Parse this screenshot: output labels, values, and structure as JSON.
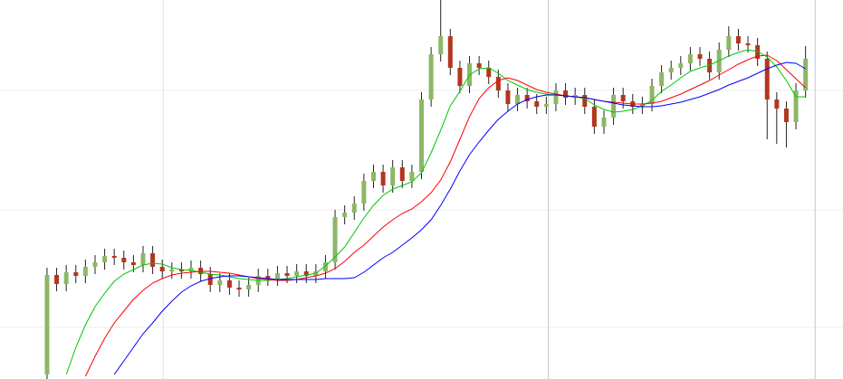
{
  "chart_data": {
    "type": "candlestick",
    "x": [
      0,
      1,
      2,
      3,
      4,
      5,
      6,
      7,
      8,
      9,
      10,
      11,
      12,
      13,
      14,
      15,
      16,
      17,
      18,
      19,
      20,
      21,
      22,
      23,
      24,
      25,
      26,
      27,
      28,
      29,
      30,
      31,
      32,
      33,
      34,
      35,
      36,
      37,
      38,
      39,
      40,
      41,
      42,
      43,
      44,
      45,
      46,
      47,
      48,
      49,
      50,
      51,
      52,
      53,
      54,
      55,
      56,
      57,
      58,
      59,
      60,
      61,
      62,
      63,
      64,
      65,
      66,
      67,
      68,
      69,
      70,
      71,
      72,
      73,
      74,
      75,
      76,
      77,
      78,
      79
    ],
    "open": [
      5,
      115,
      105,
      118,
      114,
      124,
      129,
      136,
      134,
      129,
      126,
      139,
      124,
      119,
      121,
      119,
      123,
      116,
      104,
      109,
      101,
      99,
      104,
      114,
      111,
      117,
      114,
      119,
      114,
      119,
      129,
      179,
      184,
      194,
      219,
      229,
      214,
      234,
      219,
      229,
      309,
      359,
      379,
      344,
      324,
      349,
      344,
      334,
      319,
      304,
      314,
      307,
      301,
      304,
      319,
      311,
      314,
      301,
      279,
      289,
      314,
      307,
      301,
      304,
      324,
      339,
      344,
      349,
      359,
      354,
      339,
      364,
      379,
      371,
      369,
      354,
      309,
      299,
      284,
      319
    ],
    "high": [
      123,
      123,
      126,
      126,
      132,
      137,
      144,
      144,
      142,
      137,
      147,
      147,
      132,
      129,
      129,
      131,
      131,
      124,
      117,
      117,
      109,
      112,
      122,
      122,
      125,
      125,
      127,
      127,
      127,
      137,
      187,
      192,
      202,
      227,
      237,
      237,
      242,
      242,
      237,
      317,
      367,
      419,
      387,
      352,
      357,
      357,
      352,
      342,
      327,
      322,
      322,
      315,
      312,
      327,
      327,
      322,
      322,
      309,
      297,
      322,
      322,
      315,
      312,
      332,
      347,
      352,
      357,
      367,
      367,
      362,
      372,
      390,
      387,
      379,
      377,
      362,
      317,
      307,
      327,
      368
    ],
    "low": [
      0,
      97,
      97,
      106,
      106,
      116,
      121,
      126,
      121,
      118,
      118,
      116,
      111,
      111,
      111,
      111,
      108,
      96,
      96,
      93,
      91,
      91,
      96,
      103,
      103,
      106,
      106,
      106,
      106,
      111,
      121,
      171,
      176,
      186,
      211,
      206,
      206,
      211,
      211,
      221,
      301,
      351,
      336,
      316,
      316,
      336,
      326,
      311,
      296,
      296,
      299,
      293,
      293,
      296,
      303,
      303,
      293,
      271,
      271,
      281,
      299,
      293,
      293,
      296,
      316,
      331,
      336,
      341,
      346,
      331,
      331,
      356,
      363,
      361,
      346,
      265,
      260,
      256,
      276,
      311
    ],
    "close": [
      115,
      105,
      118,
      114,
      124,
      129,
      136,
      134,
      129,
      126,
      139,
      124,
      119,
      121,
      119,
      123,
      116,
      104,
      109,
      101,
      99,
      104,
      114,
      111,
      117,
      114,
      119,
      114,
      119,
      129,
      179,
      184,
      194,
      219,
      229,
      214,
      234,
      219,
      229,
      309,
      359,
      379,
      344,
      324,
      349,
      344,
      334,
      319,
      304,
      314,
      307,
      301,
      304,
      319,
      311,
      314,
      301,
      279,
      289,
      314,
      307,
      301,
      304,
      324,
      339,
      344,
      349,
      359,
      354,
      339,
      364,
      379,
      371,
      369,
      354,
      309,
      299,
      284,
      319,
      354
    ],
    "up_color": "#8cb866",
    "down_color": "#b3361f",
    "series": [
      {
        "color": "#00c800",
        "values": [
          null,
          null,
          5,
          35,
          60,
          80,
          95,
          108,
          116,
          121,
          126,
          128,
          127,
          123,
          121,
          120,
          118,
          116,
          115,
          113,
          111,
          110,
          109,
          109,
          110,
          111,
          113,
          115,
          117,
          125,
          135,
          146,
          162,
          178,
          192,
          203,
          210,
          214,
          218,
          228,
          250,
          275,
          302,
          318,
          336,
          343,
          344,
          338,
          330,
          325,
          320,
          317,
          315,
          314,
          313,
          312,
          310,
          303,
          298,
          295,
          296,
          298,
          302,
          308,
          318,
          325,
          333,
          340,
          344,
          347,
          352,
          357,
          361,
          364,
          362,
          356,
          345,
          330,
          312,
          312
        ]
      },
      {
        "color": "#ff0000",
        "values": [
          null,
          null,
          null,
          null,
          3,
          25,
          45,
          62,
          75,
          88,
          98,
          106,
          111,
          115,
          117,
          118,
          119,
          119,
          118,
          117,
          115,
          113,
          111,
          110,
          109,
          109,
          110,
          112,
          114,
          117,
          122,
          130,
          140,
          148,
          158,
          168,
          176,
          183,
          188,
          196,
          206,
          220,
          240,
          265,
          290,
          310,
          322,
          330,
          333,
          330,
          325,
          320,
          317,
          315,
          313,
          312,
          311,
          309,
          307,
          306,
          305,
          304,
          304,
          305,
          307,
          311,
          315,
          320,
          325,
          330,
          336,
          342,
          348,
          353,
          357,
          358,
          352,
          342,
          332,
          322
        ]
      },
      {
        "color": "#0000ff",
        "values": [
          null,
          null,
          null,
          null,
          null,
          null,
          null,
          5,
          20,
          35,
          50,
          62,
          75,
          86,
          96,
          103,
          108,
          111,
          113,
          114,
          114,
          113,
          112,
          111,
          110,
          110,
          110,
          110,
          110,
          111,
          111,
          111,
          112,
          118,
          126,
          134,
          140,
          148,
          156,
          165,
          176,
          192,
          210,
          230,
          248,
          262,
          275,
          287,
          296,
          304,
          309,
          312,
          314,
          314,
          313,
          312,
          311,
          309,
          307,
          305,
          303,
          302,
          301,
          301,
          302,
          304,
          306,
          309,
          312,
          316,
          320,
          325,
          329,
          333,
          338,
          343,
          347,
          350,
          349,
          343
        ]
      }
    ],
    "xlim": [
      -4.9,
      82.9
    ],
    "ylim": [
      0,
      419
    ],
    "xticks": [
      12.1,
      52.2,
      80
    ],
    "yticks": [
      57,
      187,
      319
    ],
    "grid": true
  }
}
